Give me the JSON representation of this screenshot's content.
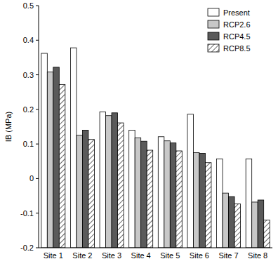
{
  "chart_data": {
    "type": "bar",
    "y_label": "IB (MPa)",
    "categories": [
      "Site 1",
      "Site 2",
      "Site 3",
      "Site 4",
      "Site 5",
      "Site 6",
      "Site 7",
      "Site 8"
    ],
    "series": [
      {
        "name": "Present",
        "color": "#ffffff",
        "values": [
          0.362,
          0.378,
          0.193,
          0.14,
          0.121,
          0.186,
          0.057,
          0.057
        ]
      },
      {
        "name": "RCP2.6",
        "color": "#c8c8c8",
        "values": [
          0.308,
          0.125,
          0.182,
          0.118,
          0.109,
          0.075,
          -0.042,
          -0.068
        ]
      },
      {
        "name": "RCP4.5",
        "color": "#5a5a5a",
        "values": [
          0.322,
          0.14,
          0.19,
          0.108,
          0.103,
          0.073,
          -0.052,
          -0.062
        ]
      },
      {
        "name": "RCP8.5",
        "color": "#ffffff",
        "line_style": "hatched",
        "values": [
          0.272,
          0.113,
          0.161,
          0.082,
          0.08,
          0.046,
          -0.073,
          -0.12
        ]
      }
    ],
    "ylim": [
      -0.2,
      0.5
    ],
    "yticks": [
      -0.2,
      -0.1,
      0,
      0.1,
      0.2,
      0.3,
      0.4,
      0.5
    ],
    "legend": "upper right",
    "grid": false
  }
}
